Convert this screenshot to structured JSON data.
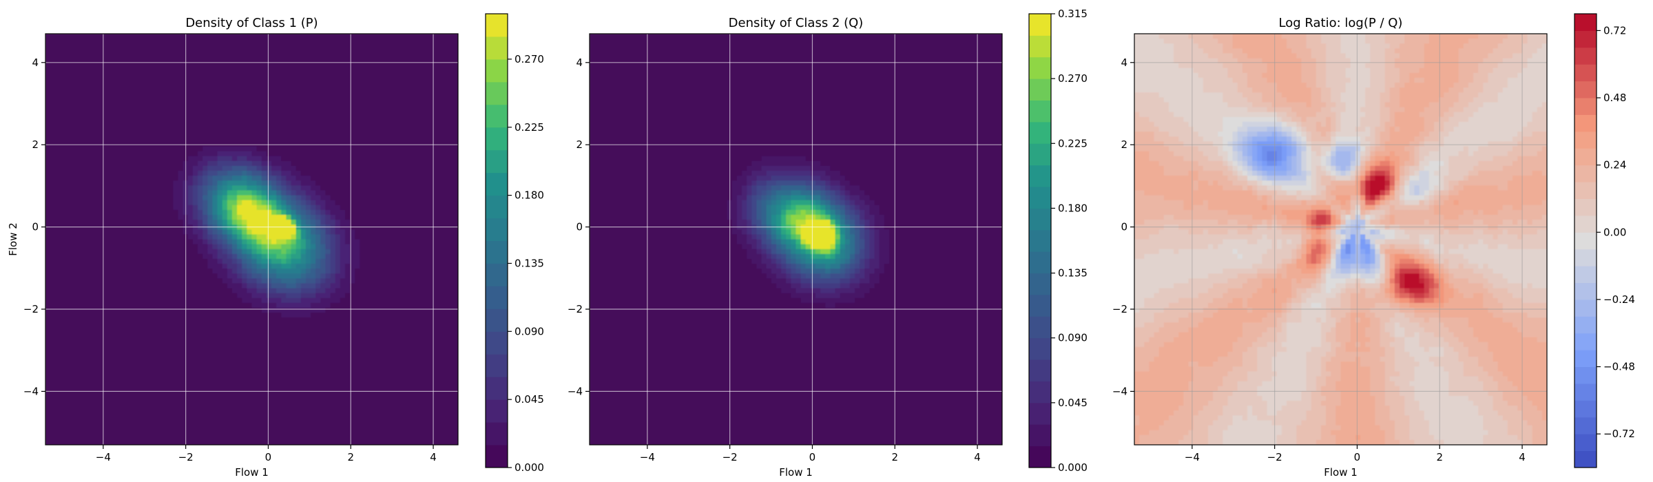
{
  "chart_data": [
    {
      "type": "heatmap",
      "title": "Density of Class 1 (P)",
      "xlabel": "Flow 1",
      "ylabel": "Flow 2",
      "xlim": [
        -5.4,
        4.6
      ],
      "ylim": [
        -5.3,
        4.7
      ],
      "xticks": [
        -4,
        -2,
        0,
        2,
        4
      ],
      "yticks": [
        -4,
        -2,
        0,
        2,
        4
      ],
      "grid": true,
      "colormap": "viridis",
      "colorbar": {
        "min": 0.0,
        "max": 0.3,
        "levels": 20,
        "ticks": [
          0.0,
          0.045,
          0.09,
          0.135,
          0.18,
          0.225,
          0.27
        ],
        "tick_labels": [
          "0.000",
          "0.045",
          "0.090",
          "0.135",
          "0.180",
          "0.225",
          "0.270"
        ]
      },
      "density_components": [
        {
          "center": [
            -0.6,
            0.5
          ],
          "sigma": [
            0.75,
            0.6
          ],
          "peak": 0.24
        },
        {
          "center": [
            0.4,
            -0.5
          ],
          "sigma": [
            0.8,
            0.7
          ],
          "peak": 0.22
        },
        {
          "center": [
            0.35,
            0.0
          ],
          "sigma": [
            0.18,
            0.15
          ],
          "peak": 0.29
        }
      ]
    },
    {
      "type": "heatmap",
      "title": "Density of Class 2 (Q)",
      "xlabel": "Flow 1",
      "ylabel": "",
      "xlim": [
        -5.4,
        4.6
      ],
      "ylim": [
        -5.3,
        4.7
      ],
      "xticks": [
        -4,
        -2,
        0,
        2,
        4
      ],
      "yticks": [
        -4,
        -2,
        0,
        2,
        4
      ],
      "grid": true,
      "colormap": "viridis",
      "colorbar": {
        "min": 0.0,
        "max": 0.315,
        "levels": 21,
        "ticks": [
          0.0,
          0.045,
          0.09,
          0.135,
          0.18,
          0.225,
          0.27,
          0.315
        ],
        "tick_labels": [
          "0.000",
          "0.045",
          "0.090",
          "0.135",
          "0.180",
          "0.225",
          "0.270",
          "0.315"
        ]
      },
      "density_components": [
        {
          "center": [
            -0.5,
            0.3
          ],
          "sigma": [
            0.7,
            0.6
          ],
          "peak": 0.2
        },
        {
          "center": [
            0.3,
            -0.4
          ],
          "sigma": [
            0.7,
            0.65
          ],
          "peak": 0.2
        },
        {
          "center": [
            0.2,
            -0.2
          ],
          "sigma": [
            0.2,
            0.2
          ],
          "peak": 0.3
        }
      ]
    },
    {
      "type": "heatmap",
      "title": "Log Ratio: log(P / Q)",
      "xlabel": "Flow 1",
      "ylabel": "",
      "xlim": [
        -5.4,
        4.6
      ],
      "ylim": [
        -5.3,
        4.7
      ],
      "xticks": [
        -4,
        -2,
        0,
        2,
        4
      ],
      "yticks": [
        -4,
        -2,
        0,
        2,
        4
      ],
      "grid": true,
      "colormap": "coolwarm",
      "colorbar": {
        "min": -0.84,
        "max": 0.78,
        "levels": 27,
        "ticks": [
          -0.72,
          -0.48,
          -0.24,
          0.0,
          0.24,
          0.48,
          0.72
        ],
        "tick_labels": [
          "−0.72",
          "−0.48",
          "−0.24",
          "0.00",
          "0.24",
          "0.48",
          "0.72"
        ]
      },
      "background_value": 0.15,
      "ratio_components": [
        {
          "center": [
            0.5,
            1.0
          ],
          "sigma": [
            0.45,
            0.35
          ],
          "amp": 0.62
        },
        {
          "center": [
            1.3,
            -1.4
          ],
          "sigma": [
            0.45,
            0.4
          ],
          "amp": 0.58
        },
        {
          "center": [
            -0.8,
            0.2
          ],
          "sigma": [
            0.3,
            0.35
          ],
          "amp": 0.4
        },
        {
          "center": [
            -1.0,
            -0.6
          ],
          "sigma": [
            0.25,
            0.3
          ],
          "amp": 0.35
        },
        {
          "center": [
            -2.0,
            1.8
          ],
          "sigma": [
            0.6,
            0.5
          ],
          "amp": -0.6
        },
        {
          "center": [
            -0.4,
            1.6
          ],
          "sigma": [
            0.3,
            0.35
          ],
          "amp": -0.5
        },
        {
          "center": [
            0.0,
            -0.6
          ],
          "sigma": [
            0.4,
            0.55
          ],
          "amp": -0.62
        },
        {
          "center": [
            1.4,
            0.9
          ],
          "sigma": [
            0.4,
            0.3
          ],
          "amp": -0.28
        }
      ]
    }
  ]
}
